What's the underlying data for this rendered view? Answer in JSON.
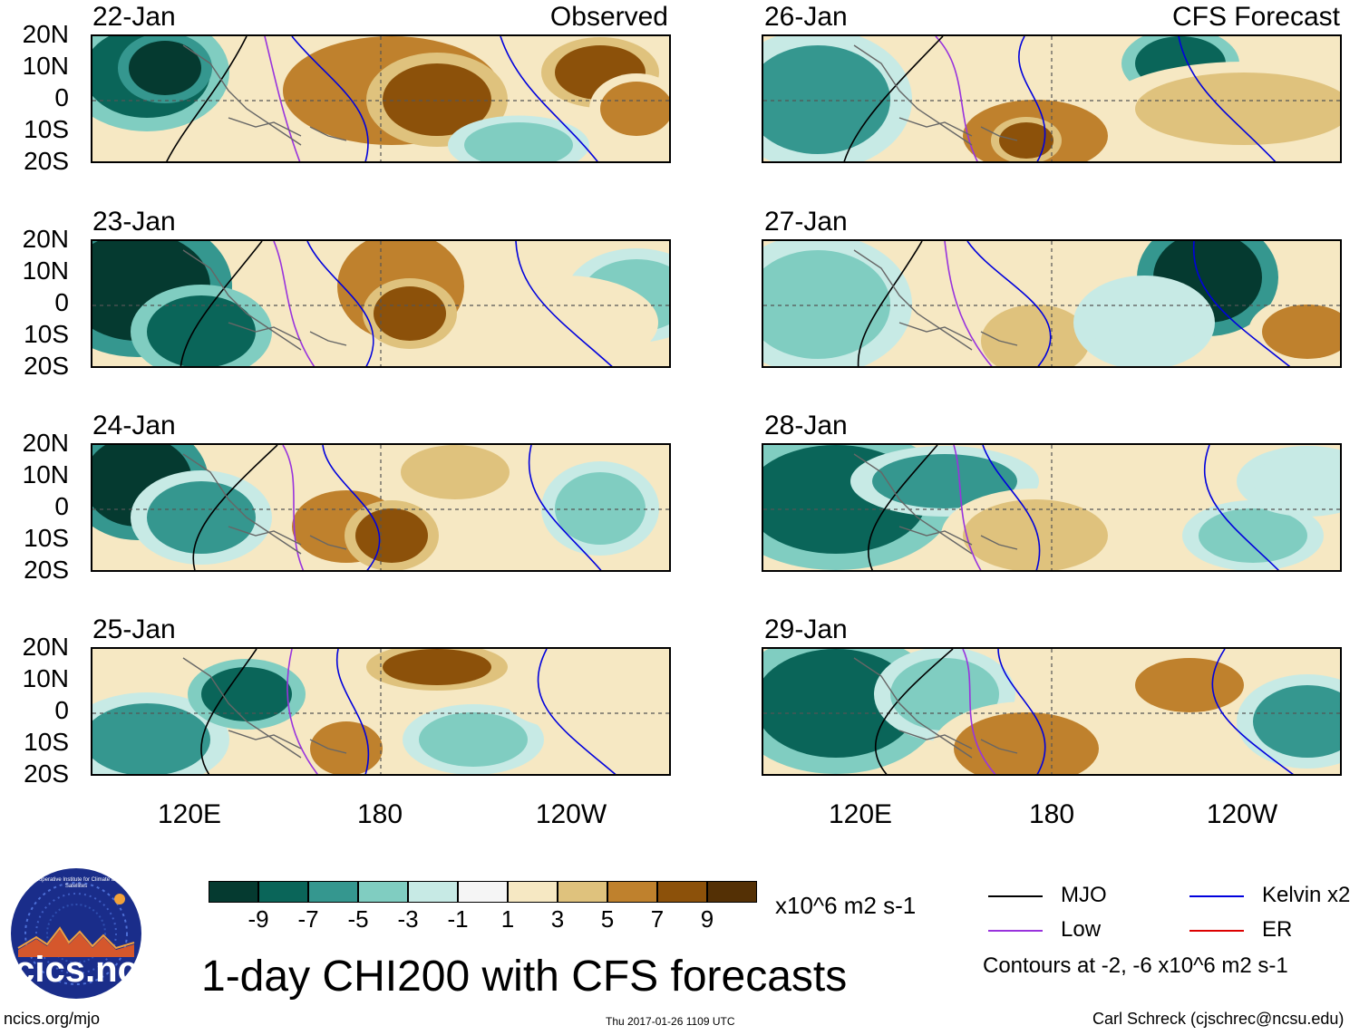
{
  "headings": {
    "observed": "Observed",
    "forecast": "CFS Forecast"
  },
  "observed_panels": [
    {
      "date": "22-Jan"
    },
    {
      "date": "23-Jan"
    },
    {
      "date": "24-Jan"
    },
    {
      "date": "25-Jan"
    }
  ],
  "forecast_panels": [
    {
      "date": "26-Jan"
    },
    {
      "date": "27-Jan"
    },
    {
      "date": "28-Jan"
    },
    {
      "date": "29-Jan"
    }
  ],
  "lat_labels": [
    "20N",
    "10N",
    "0",
    "10S",
    "20S"
  ],
  "lon_labels": [
    "120E",
    "180",
    "120W"
  ],
  "colorbar": {
    "colors": [
      "#053a30",
      "#0a6559",
      "#35978f",
      "#80cdc1",
      "#c7eae5",
      "#f5f5f5",
      "#f6e8c3",
      "#dfc27d",
      "#bf812d",
      "#8c510a",
      "#543005"
    ],
    "labels": [
      "-9",
      "-7",
      "-5",
      "-3",
      "-1",
      "1",
      "3",
      "5",
      "7",
      "9"
    ],
    "units": "x10^6 m2 s-1"
  },
  "legend": {
    "mjo": {
      "label": "MJO",
      "color": "#000000"
    },
    "kelvin": {
      "label": "Kelvin x2",
      "color": "#0000dd"
    },
    "low": {
      "label": "Low",
      "color": "#9933dd"
    },
    "er": {
      "label": "ER",
      "color": "#dd0000"
    },
    "contours_note": "Contours at -2, -6 x10^6 m2 s-1"
  },
  "main_title": "1-day CHI200 with CFS forecasts",
  "logo_text": "cics.nc",
  "logo_ring_text": "Cooperative Institute for Climate and Satellites",
  "footer": {
    "url": "ncics.org/mjo",
    "timestamp": "Thu 2017-01-26 1109 UTC",
    "author": "Carl Schreck (cjschrec@ncsu.edu)"
  }
}
